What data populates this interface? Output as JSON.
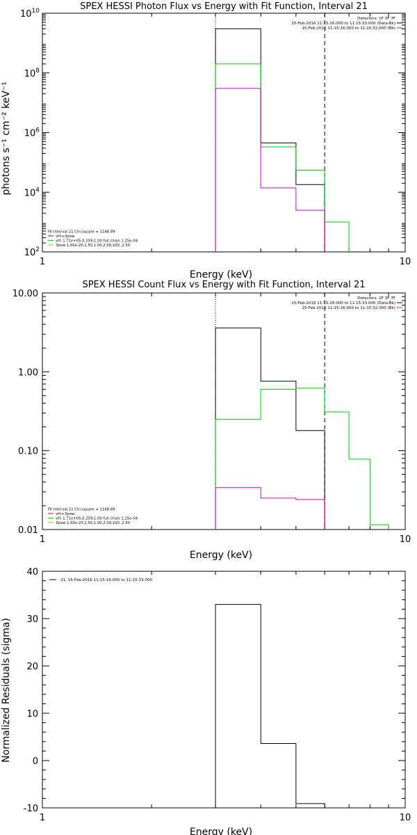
{
  "chart_data": [
    {
      "type": "line",
      "title": "SPEX HESSI Photon Flux vs Energy with Fit Function, Interval 21",
      "xlabel": "Energy (keV)",
      "ylabel": "photons s⁻¹ cm⁻² keV⁻¹",
      "xscale": "log",
      "yscale": "log",
      "xlim": [
        1,
        10
      ],
      "ylim": [
        100,
        10000000000
      ],
      "x_ticks": [
        {
          "value": 1,
          "label": "1"
        },
        {
          "value": 10,
          "label": "10"
        }
      ],
      "y_ticks": [
        {
          "value": 100,
          "base": "10",
          "exp": "2"
        },
        {
          "value": 10000,
          "base": "10",
          "exp": "4"
        },
        {
          "value": 1000000,
          "base": "10",
          "exp": "6"
        },
        {
          "value": 100000000,
          "base": "10",
          "exp": "8"
        },
        {
          "value": 10000000000,
          "base": "10",
          "exp": "10"
        }
      ],
      "series": [
        {
          "color": "#000000",
          "bins": [
            [
              3,
              4,
              3000000000
            ],
            [
              4,
              5,
              450000
            ],
            [
              5,
              6,
              18000
            ]
          ]
        },
        {
          "color": "#00cc00",
          "bins": [
            [
              3,
              4,
              200000000
            ],
            [
              4,
              5,
              330000
            ],
            [
              5,
              6,
              55000
            ],
            [
              6,
              7,
              1000
            ]
          ]
        },
        {
          "color": "#cc00cc",
          "bins": [
            [
              3,
              4,
              30000000
            ],
            [
              4,
              5,
              14000
            ],
            [
              5,
              6,
              2500
            ]
          ]
        }
      ],
      "vlines": [
        {
          "x": 3,
          "style": "dotted"
        },
        {
          "x": 6,
          "style": "dashed"
        }
      ],
      "legend_top_right": [
        {
          "text": "Detectors: 1F 3F 7F",
          "color": ""
        },
        {
          "text": "15-Feb-2016 11:15:16.000 to 11:15:33.000 (Data-Bk)",
          "color": "#000000"
        },
        {
          "text": "15-Feb-2016 11:15:16.000 to 11:15:32.000 (Bk)",
          "color": "#cc00cc"
        }
      ],
      "legend_bottom_left": [
        {
          "text": "Fit Interval 21   Chi-square = 1168.89",
          "color": ""
        },
        {
          "text": "vth+3pow",
          "color": "#cc0000"
        },
        {
          "text": "vth 1.71e+05,0.259,1.00  full chian 1.25e-04",
          "color": "#00cc00"
        },
        {
          "text": "3pow 1.00e-20,1.50,1.00,2.00,100.,2.50",
          "color": "#ccaa00"
        }
      ]
    },
    {
      "type": "line",
      "title": "SPEX HESSI Count Flux vs Energy with Fit Function, Interval 21",
      "xlabel": "Energy (keV)",
      "ylabel": "",
      "xscale": "log",
      "yscale": "log",
      "xlim": [
        1,
        10
      ],
      "ylim": [
        0.01,
        10
      ],
      "x_ticks": [
        {
          "value": 1,
          "label": "1"
        },
        {
          "value": 10,
          "label": "10"
        }
      ],
      "y_ticks": [
        {
          "value": 0.01,
          "label": "0.01"
        },
        {
          "value": 0.1,
          "label": "0.10"
        },
        {
          "value": 1,
          "label": "1.00"
        },
        {
          "value": 10,
          "label": "10.00"
        }
      ],
      "series": [
        {
          "color": "#000000",
          "bins": [
            [
              3,
              4,
              3.6
            ],
            [
              4,
              5,
              0.76
            ],
            [
              5,
              6,
              0.18
            ]
          ]
        },
        {
          "color": "#00cc00",
          "bins": [
            [
              3,
              4,
              0.25
            ],
            [
              4,
              5,
              0.6
            ],
            [
              5,
              6,
              0.62
            ],
            [
              6,
              7,
              0.31
            ],
            [
              7,
              8,
              0.078
            ],
            [
              8,
              9,
              0.0115
            ]
          ]
        },
        {
          "color": "#cc00cc",
          "bins": [
            [
              3,
              4,
              0.034
            ],
            [
              4,
              5,
              0.025
            ],
            [
              5,
              6,
              0.024
            ]
          ]
        }
      ],
      "vlines": [
        {
          "x": 3,
          "style": "dotted"
        },
        {
          "x": 6,
          "style": "dashed"
        }
      ],
      "legend_top_right": [
        {
          "text": "Detectors: 1F 3F 7F",
          "color": ""
        },
        {
          "text": "15-Feb-2016 11:15:16.000 to 11:15:33.000 (Data-Bk)",
          "color": "#000000"
        },
        {
          "text": "15-Feb-2016 11:15:16.000 to 11:15:32.000 (Bk)",
          "color": "#cc00cc"
        }
      ],
      "legend_bottom_left": [
        {
          "text": "Fit Interval 21   Chi-square = 1168.89",
          "color": ""
        },
        {
          "text": "vth+3pow",
          "color": "#cc0000"
        },
        {
          "text": "vth 1.71e+05,0.259,1.00  full chian 1.25e-04",
          "color": "#00cc00"
        },
        {
          "text": "3pow 1.00e-20,1.50,1.00,2.00,100.,2.50",
          "color": "#ccaa00"
        }
      ]
    },
    {
      "type": "line",
      "title": "",
      "xlabel": "Energy (keV)",
      "ylabel": "Normalized Residuals (sigma)",
      "xscale": "log",
      "yscale": "linear",
      "xlim": [
        1,
        10
      ],
      "ylim": [
        -10,
        40
      ],
      "x_ticks": [
        {
          "value": 1,
          "label": "1"
        },
        {
          "value": 10,
          "label": "10"
        }
      ],
      "y_ticks": [
        {
          "value": -10,
          "label": "-10"
        },
        {
          "value": 0,
          "label": "0"
        },
        {
          "value": 10,
          "label": "10"
        },
        {
          "value": 20,
          "label": "20"
        },
        {
          "value": 30,
          "label": "30"
        },
        {
          "value": 40,
          "label": "40"
        }
      ],
      "series": [
        {
          "color": "#000000",
          "bins": [
            [
              3,
              4,
              33
            ],
            [
              4,
              5,
              3.6
            ],
            [
              5,
              6,
              -9.1
            ]
          ]
        }
      ],
      "vlines": [],
      "legend_top_left": [
        {
          "text": "21. 15-Feb-2016 11:15:16.000 to 11:15:33.000",
          "color": "#000000"
        }
      ]
    }
  ]
}
